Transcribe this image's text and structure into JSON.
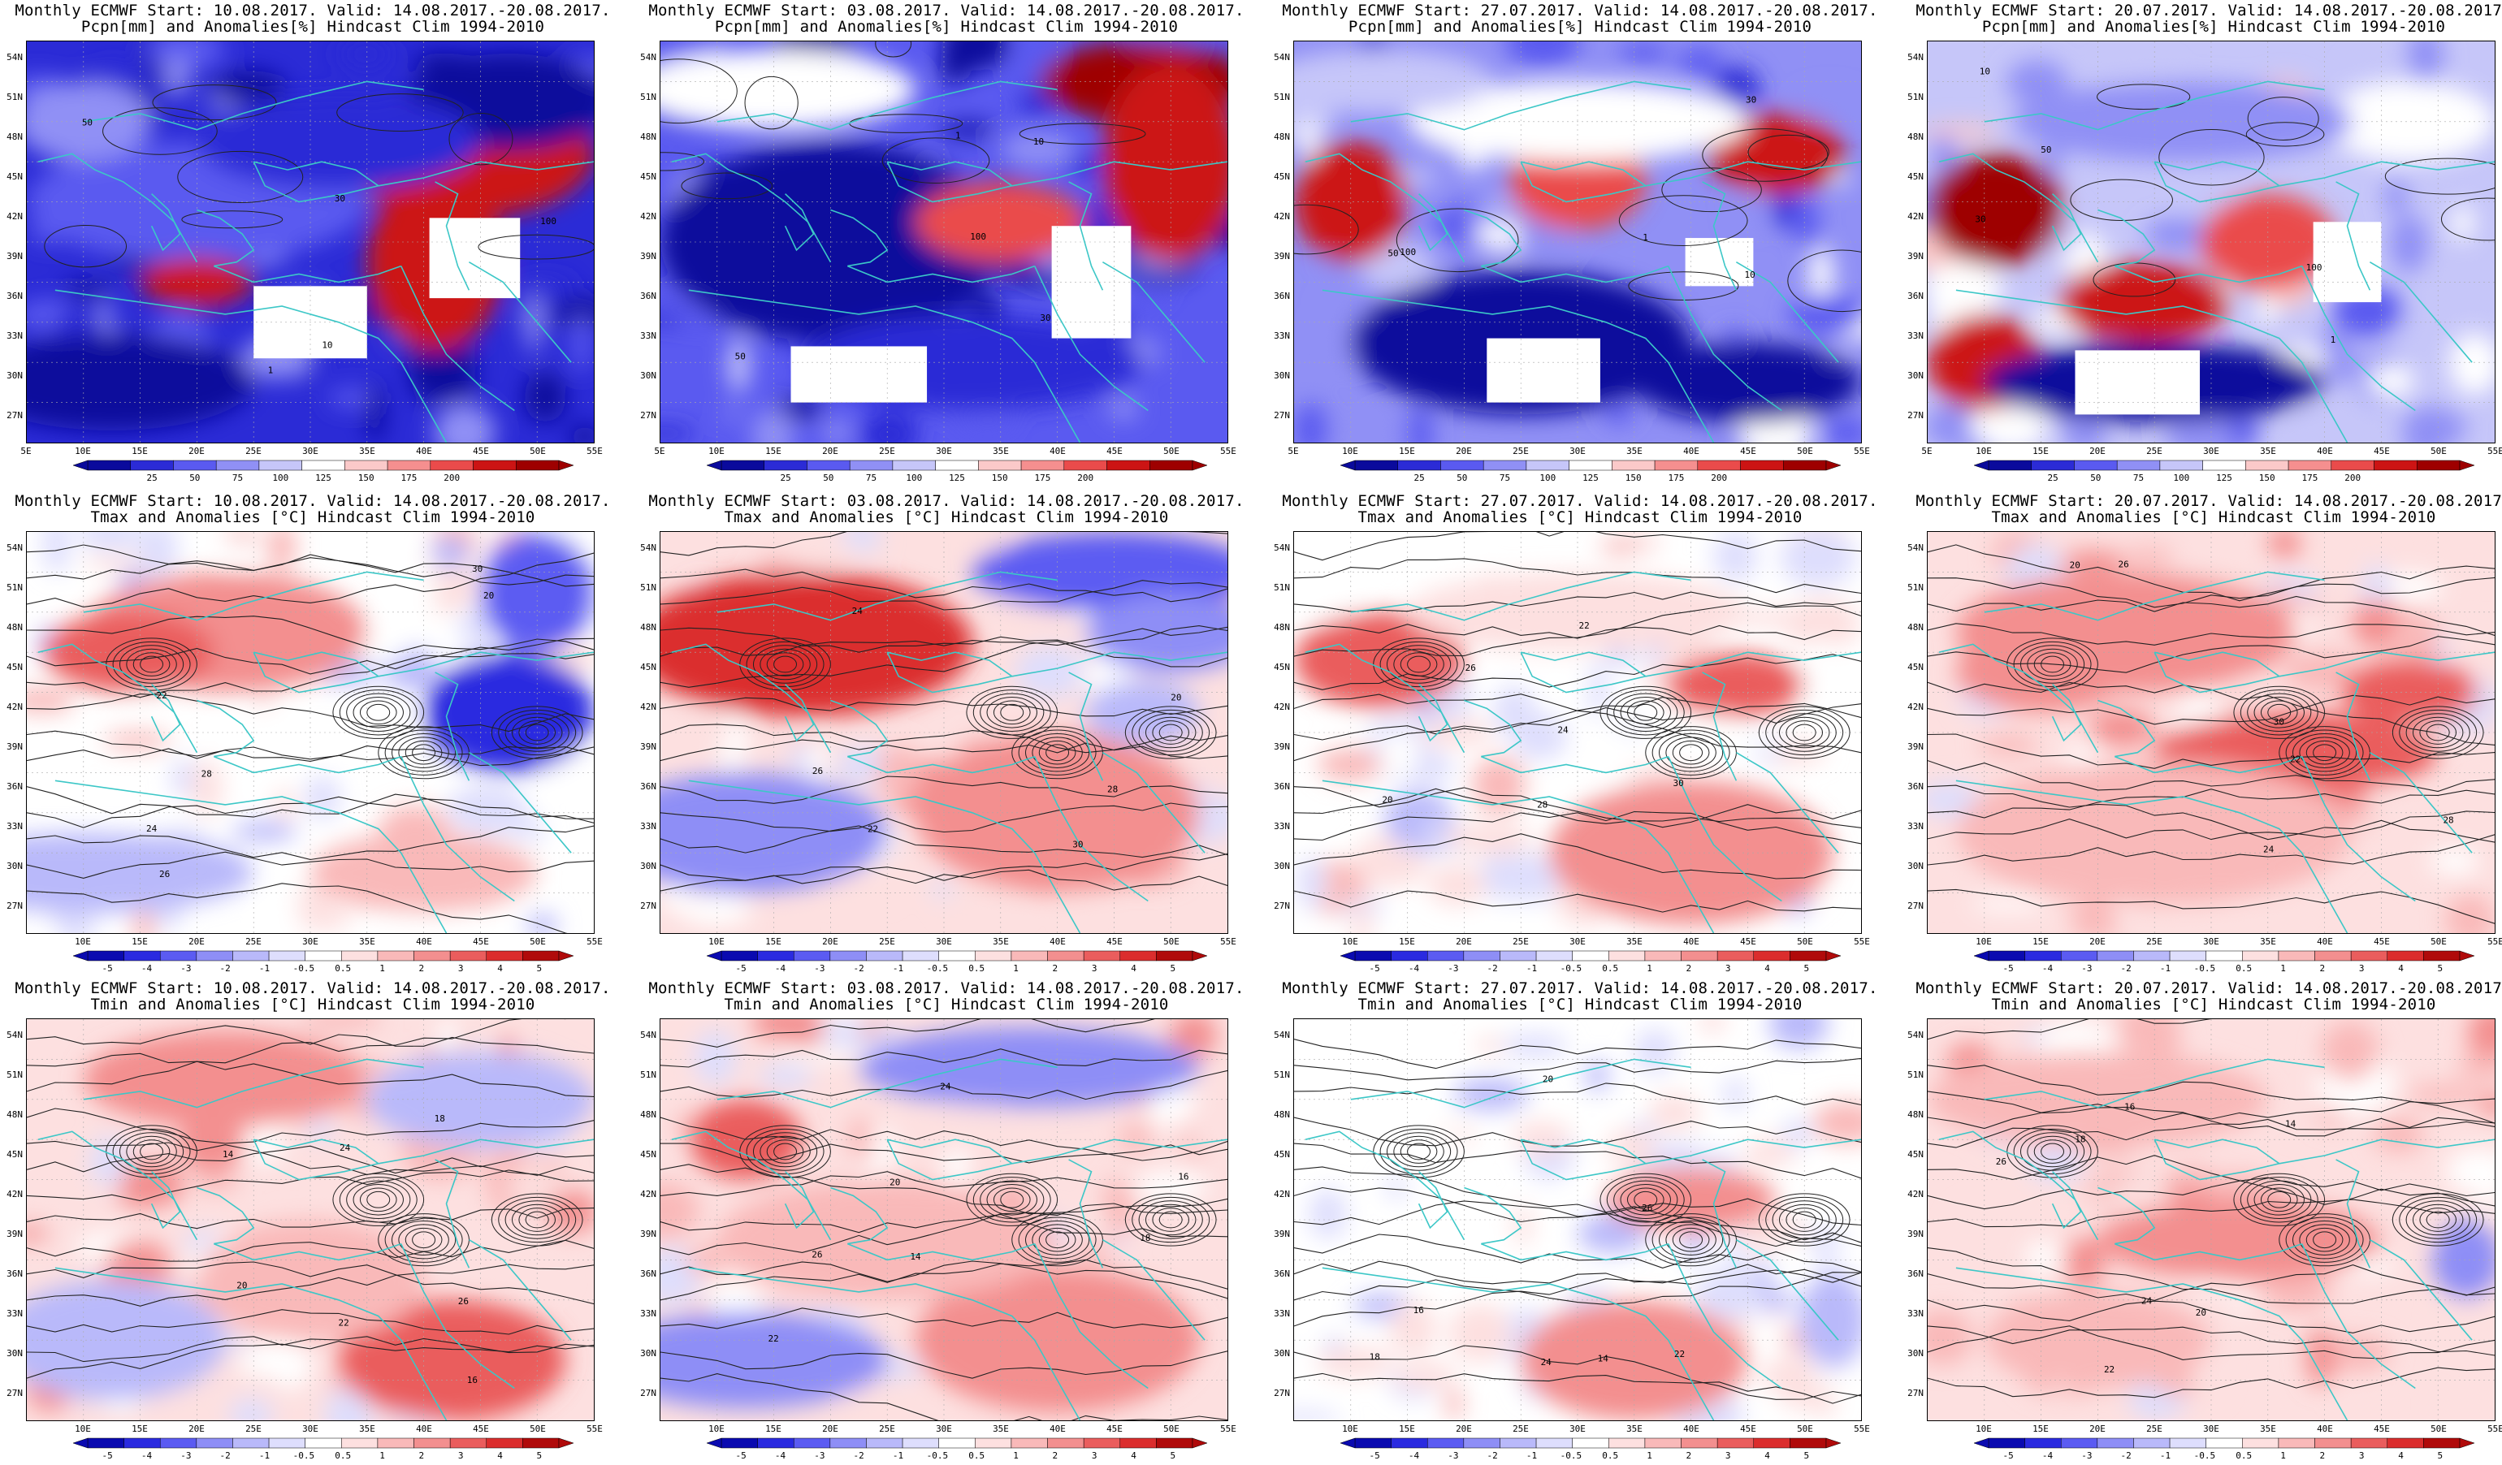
{
  "colors": {
    "precip_scale": [
      "#0a0a9c",
      "#2b2bd6",
      "#5a5af0",
      "#9090f5",
      "#c6c6f9",
      "#ffffff",
      "#fbc9c9",
      "#f58f8f",
      "#ea4b4b",
      "#cc1414",
      "#9e0000"
    ],
    "temp_scale": [
      "#0a0ab0",
      "#2a2ae0",
      "#5b5bf2",
      "#8e8ef6",
      "#b9b9fa",
      "#dedefd",
      "#ffffff",
      "#fde0e0",
      "#f9b9b9",
      "#f38f8f",
      "#ea5d5d",
      "#db2d2d",
      "#b00a0a"
    ],
    "coastline": "#3cc7c7",
    "contour": "#222222"
  },
  "panels": [
    {
      "row": 0,
      "col": 0,
      "title1": "Monthly ECMWF Start: 10.08.2017. Valid: 14.08.2017.-20.08.2017.",
      "title2": "Pcpn[mm] and Anomalies[%] Hindcast Clim 1994-2010",
      "kind": "precip"
    },
    {
      "row": 0,
      "col": 1,
      "title1": "Monthly ECMWF Start: 03.08.2017. Valid: 14.08.2017.-20.08.2017.",
      "title2": "Pcpn[mm] and Anomalies[%] Hindcast Clim 1994-2010",
      "kind": "precip"
    },
    {
      "row": 0,
      "col": 2,
      "title1": "Monthly ECMWF Start: 27.07.2017. Valid: 14.08.2017.-20.08.2017.",
      "title2": "Pcpn[mm] and Anomalies[%] Hindcast Clim 1994-2010",
      "kind": "precip"
    },
    {
      "row": 0,
      "col": 3,
      "title1": "Monthly ECMWF Start: 20.07.2017. Valid: 14.08.2017.-20.08.2017.",
      "title2": "Pcpn[mm] and Anomalies[%] Hindcast Clim 1994-2010",
      "kind": "precip"
    },
    {
      "row": 1,
      "col": 0,
      "title1": "Monthly ECMWF Start: 10.08.2017. Valid: 14.08.2017.-20.08.2017.",
      "title2": "Tmax and Anomalies [°C] Hindcast Clim 1994-2010",
      "kind": "temp"
    },
    {
      "row": 1,
      "col": 1,
      "title1": "Monthly ECMWF Start: 03.08.2017. Valid: 14.08.2017.-20.08.2017.",
      "title2": "Tmax and Anomalies [°C] Hindcast Clim 1994-2010",
      "kind": "temp"
    },
    {
      "row": 1,
      "col": 2,
      "title1": "Monthly ECMWF Start: 27.07.2017. Valid: 14.08.2017.-20.08.2017.",
      "title2": "Tmax and Anomalies [°C] Hindcast Clim 1994-2010",
      "kind": "temp"
    },
    {
      "row": 1,
      "col": 3,
      "title1": "Monthly ECMWF Start: 20.07.2017. Valid: 14.08.2017.-20.08.2017.",
      "title2": "Tmax and Anomalies [°C] Hindcast Clim 1994-2010",
      "kind": "temp"
    },
    {
      "row": 2,
      "col": 0,
      "title1": "Monthly ECMWF Start: 10.08.2017. Valid: 14.08.2017.-20.08.2017.",
      "title2": "Tmin and Anomalies [°C] Hindcast Clim 1994-2010",
      "kind": "temp"
    },
    {
      "row": 2,
      "col": 1,
      "title1": "Monthly ECMWF Start: 03.08.2017. Valid: 14.08.2017.-20.08.2017.",
      "title2": "Tmin and Anomalies [°C] Hindcast Clim 1994-2010",
      "kind": "temp"
    },
    {
      "row": 2,
      "col": 2,
      "title1": "Monthly ECMWF Start: 27.07.2017. Valid: 14.08.2017.-20.08.2017.",
      "title2": "Tmin and Anomalies [°C] Hindcast Clim 1994-2010",
      "kind": "temp"
    },
    {
      "row": 2,
      "col": 3,
      "title1": "Monthly ECMWF Start: 20.07.2017. Valid: 14.08.2017.-20.08.2017.",
      "title2": "Tmin and Anomalies [°C] Hindcast Clim 1994-2010",
      "kind": "temp"
    }
  ],
  "lat_labels": [
    "54N",
    "51N",
    "48N",
    "45N",
    "42N",
    "39N",
    "36N",
    "33N",
    "30N",
    "27N"
  ],
  "lon_labels_precip": [
    "5E",
    "10E",
    "15E",
    "20E",
    "25E",
    "30E",
    "35E",
    "40E",
    "45E",
    "50E",
    "55E"
  ],
  "lon_labels_temp": [
    "10E",
    "15E",
    "20E",
    "25E",
    "30E",
    "35E",
    "40E",
    "45E",
    "50E",
    "55E"
  ],
  "precip_colorbar_labels": [
    "25",
    "50",
    "75",
    "100",
    "125",
    "150",
    "175",
    "200"
  ],
  "temp_colorbar_labels": [
    "-5",
    "-4",
    "-3",
    "-2",
    "-1",
    "-0.5",
    "0.5",
    "1",
    "2",
    "3",
    "4",
    "5"
  ],
  "contour_labels_precip": [
    "1",
    "10",
    "30",
    "50",
    "100"
  ],
  "contour_labels_tmax": [
    "20",
    "22",
    "24",
    "26",
    "28",
    "30"
  ],
  "contour_labels_tmin": [
    "14",
    "16",
    "18",
    "20",
    "22",
    "24",
    "26"
  ],
  "anomaly_patterns": [
    {
      "panel": 0,
      "blobs": [
        [
          0.78,
          0.28,
          0.22,
          0.16,
          9
        ],
        [
          0.72,
          0.55,
          0.12,
          0.22,
          9
        ],
        [
          0.3,
          0.4,
          0.3,
          0.15,
          2
        ],
        [
          0.85,
          0.15,
          0.18,
          0.12,
          0
        ],
        [
          0.15,
          0.85,
          0.25,
          0.12,
          0
        ],
        [
          0.55,
          0.25,
          0.25,
          0.12,
          1
        ],
        [
          0.3,
          0.6,
          0.1,
          0.06,
          9
        ],
        [
          0.1,
          0.2,
          0.12,
          0.1,
          3
        ]
      ],
      "base": 1,
      "holes": [
        [
          0.5,
          0.7,
          0.1,
          0.09
        ],
        [
          0.79,
          0.54,
          0.08,
          0.1
        ]
      ]
    },
    {
      "panel": 1,
      "blobs": [
        [
          0.85,
          0.1,
          0.18,
          0.1,
          10
        ],
        [
          0.9,
          0.3,
          0.12,
          0.25,
          9
        ],
        [
          0.3,
          0.5,
          0.3,
          0.25,
          0
        ],
        [
          0.6,
          0.45,
          0.15,
          0.1,
          8
        ],
        [
          0.2,
          0.12,
          0.25,
          0.1,
          5
        ],
        [
          0.55,
          0.8,
          0.3,
          0.12,
          1
        ]
      ],
      "base": 2,
      "holes": [
        [
          0.35,
          0.83,
          0.12,
          0.07
        ],
        [
          0.76,
          0.6,
          0.07,
          0.14
        ]
      ]
    },
    {
      "panel": 2,
      "blobs": [
        [
          0.1,
          0.4,
          0.1,
          0.15,
          9
        ],
        [
          0.5,
          0.35,
          0.12,
          0.12,
          8
        ],
        [
          0.85,
          0.28,
          0.12,
          0.1,
          9
        ],
        [
          0.4,
          0.75,
          0.3,
          0.18,
          0
        ],
        [
          0.8,
          0.85,
          0.2,
          0.1,
          0
        ],
        [
          0.5,
          0.2,
          0.3,
          0.1,
          5
        ],
        [
          0.15,
          0.1,
          0.2,
          0.08,
          4
        ]
      ],
      "base": 3,
      "holes": [
        [
          0.44,
          0.82,
          0.1,
          0.08
        ],
        [
          0.75,
          0.55,
          0.06,
          0.06
        ]
      ]
    },
    {
      "panel": 3,
      "blobs": [
        [
          0.12,
          0.42,
          0.12,
          0.14,
          10
        ],
        [
          0.1,
          0.8,
          0.1,
          0.12,
          9
        ],
        [
          0.38,
          0.65,
          0.15,
          0.1,
          9
        ],
        [
          0.6,
          0.5,
          0.12,
          0.12,
          8
        ],
        [
          0.4,
          0.85,
          0.3,
          0.1,
          0
        ],
        [
          0.85,
          0.2,
          0.15,
          0.1,
          5
        ],
        [
          0.45,
          0.2,
          0.3,
          0.1,
          3
        ]
      ],
      "base": 4,
      "holes": [
        [
          0.37,
          0.85,
          0.11,
          0.08
        ],
        [
          0.74,
          0.55,
          0.06,
          0.1
        ]
      ]
    },
    {
      "panel": 4,
      "blobs": [
        [
          0.35,
          0.25,
          0.25,
          0.15,
          9
        ],
        [
          0.85,
          0.45,
          0.15,
          0.15,
          1
        ],
        [
          0.9,
          0.15,
          0.1,
          0.15,
          2
        ],
        [
          0.1,
          0.85,
          0.3,
          0.1,
          4
        ],
        [
          0.7,
          0.85,
          0.2,
          0.1,
          8
        ],
        [
          0.18,
          0.3,
          0.15,
          0.1,
          10
        ]
      ],
      "base": 6,
      "holes": []
    },
    {
      "panel": 5,
      "blobs": [
        [
          0.25,
          0.28,
          0.3,
          0.18,
          11
        ],
        [
          0.8,
          0.1,
          0.25,
          0.1,
          2
        ],
        [
          0.9,
          0.25,
          0.15,
          0.1,
          3
        ],
        [
          0.15,
          0.75,
          0.25,
          0.15,
          3
        ],
        [
          0.7,
          0.7,
          0.25,
          0.2,
          9
        ],
        [
          0.85,
          0.45,
          0.1,
          0.08,
          4
        ]
      ],
      "base": 7,
      "holes": []
    },
    {
      "panel": 6,
      "blobs": [
        [
          0.15,
          0.32,
          0.15,
          0.12,
          10
        ],
        [
          0.78,
          0.38,
          0.12,
          0.08,
          10
        ],
        [
          0.7,
          0.8,
          0.25,
          0.18,
          9
        ],
        [
          0.5,
          0.2,
          0.3,
          0.1,
          7
        ]
      ],
      "base": 6,
      "holes": []
    },
    {
      "panel": 7,
      "blobs": [
        [
          0.35,
          0.25,
          0.3,
          0.15,
          9
        ],
        [
          0.65,
          0.55,
          0.25,
          0.1,
          10
        ],
        [
          0.85,
          0.4,
          0.12,
          0.08,
          10
        ],
        [
          0.2,
          0.35,
          0.15,
          0.1,
          9
        ],
        [
          0.4,
          0.75,
          0.35,
          0.18,
          8
        ]
      ],
      "base": 7,
      "holes": []
    },
    {
      "panel": 8,
      "blobs": [
        [
          0.35,
          0.15,
          0.25,
          0.12,
          9
        ],
        [
          0.8,
          0.2,
          0.2,
          0.12,
          4
        ],
        [
          0.75,
          0.85,
          0.2,
          0.15,
          10
        ],
        [
          0.15,
          0.8,
          0.2,
          0.15,
          4
        ],
        [
          0.5,
          0.65,
          0.2,
          0.15,
          8
        ]
      ],
      "base": 7,
      "holes": []
    },
    {
      "panel": 9,
      "blobs": [
        [
          0.65,
          0.12,
          0.3,
          0.1,
          3
        ],
        [
          0.15,
          0.3,
          0.1,
          0.1,
          10
        ],
        [
          0.7,
          0.8,
          0.25,
          0.18,
          9
        ],
        [
          0.15,
          0.85,
          0.25,
          0.12,
          3
        ],
        [
          0.4,
          0.55,
          0.3,
          0.15,
          8
        ]
      ],
      "base": 7,
      "holes": []
    },
    {
      "panel": 10,
      "blobs": [
        [
          0.7,
          0.45,
          0.15,
          0.08,
          9
        ],
        [
          0.6,
          0.85,
          0.2,
          0.15,
          9
        ],
        [
          0.95,
          0.75,
          0.06,
          0.12,
          4
        ]
      ],
      "base": 6,
      "holes": []
    },
    {
      "panel": 11,
      "blobs": [
        [
          0.3,
          0.2,
          0.3,
          0.12,
          8
        ],
        [
          0.55,
          0.55,
          0.25,
          0.1,
          9
        ],
        [
          0.95,
          0.6,
          0.06,
          0.1,
          3
        ],
        [
          0.3,
          0.8,
          0.2,
          0.12,
          8
        ]
      ],
      "base": 7,
      "holes": []
    }
  ]
}
